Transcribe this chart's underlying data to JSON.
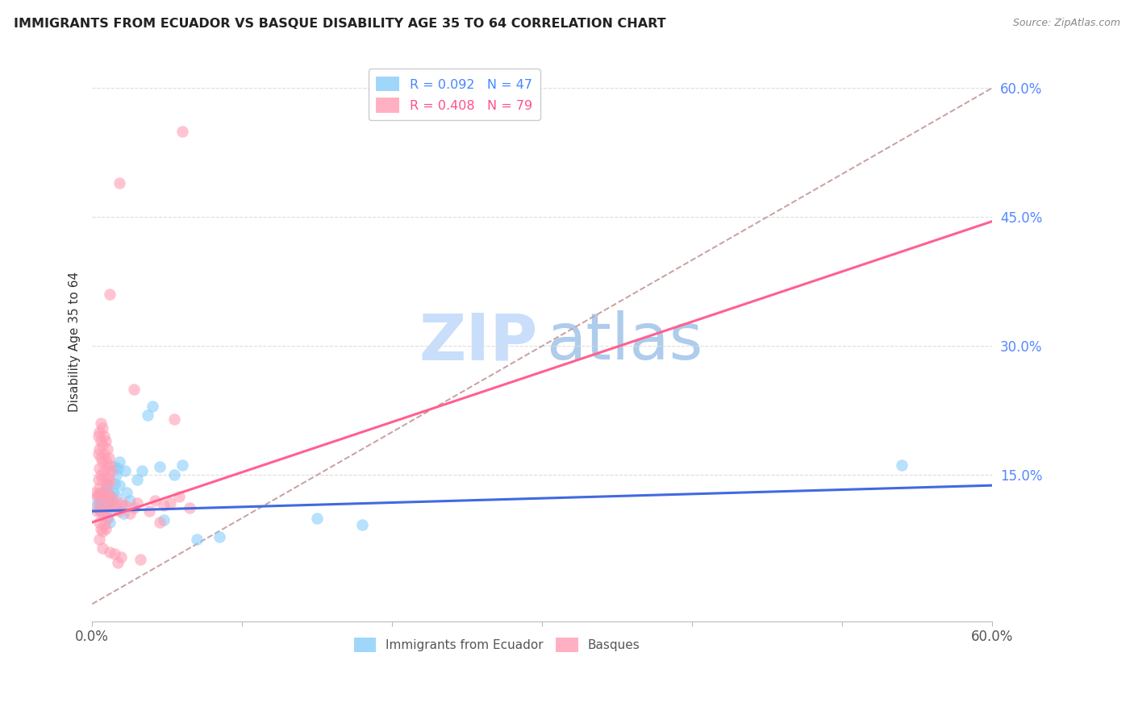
{
  "title": "IMMIGRANTS FROM ECUADOR VS BASQUE DISABILITY AGE 35 TO 64 CORRELATION CHART",
  "source": "Source: ZipAtlas.com",
  "ylabel": "Disability Age 35 to 64",
  "x_min": 0.0,
  "x_max": 0.6,
  "y_min": -0.02,
  "y_max": 0.63,
  "x_ticks": [
    0.0,
    0.1,
    0.2,
    0.3,
    0.4,
    0.5,
    0.6
  ],
  "x_tick_labels": [
    "0.0%",
    "",
    "",
    "",
    "",
    "",
    "60.0%"
  ],
  "y_tick_positions": [
    0.15,
    0.3,
    0.45,
    0.6
  ],
  "y_tick_labels": [
    "15.0%",
    "30.0%",
    "45.0%",
    "60.0%"
  ],
  "ecuador_color": "#87CEFA",
  "basque_color": "#FF9EB5",
  "trendline_ecuador_color": "#4169E1",
  "trendline_basque_color": "#FF6090",
  "diagonal_color": "#C8A0A0",
  "watermark_zip_color": "#C8DEFA",
  "watermark_atlas_color": "#A0C4E8",
  "grid_color": "#DDDDDD",
  "trendline_ecuador": [
    [
      0.0,
      0.108
    ],
    [
      0.6,
      0.138
    ]
  ],
  "trendline_basque": [
    [
      0.0,
      0.095
    ],
    [
      0.6,
      0.445
    ]
  ],
  "diagonal_line": [
    [
      0.0,
      0.0
    ],
    [
      0.6,
      0.6
    ]
  ],
  "ecuador_scatter": [
    [
      0.003,
      0.115
    ],
    [
      0.004,
      0.118
    ],
    [
      0.005,
      0.125
    ],
    [
      0.005,
      0.11
    ],
    [
      0.006,
      0.12
    ],
    [
      0.006,
      0.108
    ],
    [
      0.007,
      0.13
    ],
    [
      0.007,
      0.115
    ],
    [
      0.008,
      0.125
    ],
    [
      0.008,
      0.112
    ],
    [
      0.009,
      0.135
    ],
    [
      0.009,
      0.108
    ],
    [
      0.01,
      0.14
    ],
    [
      0.01,
      0.118
    ],
    [
      0.01,
      0.1
    ],
    [
      0.011,
      0.13
    ],
    [
      0.011,
      0.115
    ],
    [
      0.012,
      0.125
    ],
    [
      0.012,
      0.095
    ],
    [
      0.013,
      0.118
    ],
    [
      0.013,
      0.108
    ],
    [
      0.014,
      0.13
    ],
    [
      0.015,
      0.16
    ],
    [
      0.015,
      0.14
    ],
    [
      0.016,
      0.15
    ],
    [
      0.016,
      0.125
    ],
    [
      0.017,
      0.158
    ],
    [
      0.018,
      0.165
    ],
    [
      0.018,
      0.138
    ],
    [
      0.02,
      0.115
    ],
    [
      0.021,
      0.105
    ],
    [
      0.022,
      0.155
    ],
    [
      0.023,
      0.13
    ],
    [
      0.025,
      0.12
    ],
    [
      0.03,
      0.145
    ],
    [
      0.033,
      0.155
    ],
    [
      0.037,
      0.22
    ],
    [
      0.04,
      0.23
    ],
    [
      0.045,
      0.16
    ],
    [
      0.048,
      0.098
    ],
    [
      0.055,
      0.15
    ],
    [
      0.06,
      0.162
    ],
    [
      0.07,
      0.075
    ],
    [
      0.085,
      0.078
    ],
    [
      0.15,
      0.1
    ],
    [
      0.18,
      0.092
    ],
    [
      0.54,
      0.162
    ]
  ],
  "basque_scatter": [
    [
      0.002,
      0.13
    ],
    [
      0.003,
      0.125
    ],
    [
      0.003,
      0.108
    ],
    [
      0.004,
      0.195
    ],
    [
      0.004,
      0.175
    ],
    [
      0.004,
      0.145
    ],
    [
      0.004,
      0.128
    ],
    [
      0.005,
      0.2
    ],
    [
      0.005,
      0.18
    ],
    [
      0.005,
      0.158
    ],
    [
      0.005,
      0.135
    ],
    [
      0.005,
      0.115
    ],
    [
      0.005,
      0.095
    ],
    [
      0.005,
      0.075
    ],
    [
      0.006,
      0.21
    ],
    [
      0.006,
      0.19
    ],
    [
      0.006,
      0.17
    ],
    [
      0.006,
      0.15
    ],
    [
      0.006,
      0.13
    ],
    [
      0.006,
      0.108
    ],
    [
      0.006,
      0.088
    ],
    [
      0.007,
      0.205
    ],
    [
      0.007,
      0.185
    ],
    [
      0.007,
      0.165
    ],
    [
      0.007,
      0.145
    ],
    [
      0.007,
      0.125
    ],
    [
      0.007,
      0.105
    ],
    [
      0.007,
      0.085
    ],
    [
      0.007,
      0.065
    ],
    [
      0.008,
      0.195
    ],
    [
      0.008,
      0.175
    ],
    [
      0.008,
      0.155
    ],
    [
      0.008,
      0.13
    ],
    [
      0.008,
      0.112
    ],
    [
      0.008,
      0.092
    ],
    [
      0.009,
      0.19
    ],
    [
      0.009,
      0.168
    ],
    [
      0.009,
      0.148
    ],
    [
      0.009,
      0.128
    ],
    [
      0.009,
      0.108
    ],
    [
      0.009,
      0.088
    ],
    [
      0.01,
      0.18
    ],
    [
      0.01,
      0.16
    ],
    [
      0.01,
      0.14
    ],
    [
      0.01,
      0.12
    ],
    [
      0.01,
      0.1
    ],
    [
      0.011,
      0.17
    ],
    [
      0.011,
      0.148
    ],
    [
      0.011,
      0.128
    ],
    [
      0.012,
      0.162
    ],
    [
      0.012,
      0.142
    ],
    [
      0.012,
      0.06
    ],
    [
      0.013,
      0.155
    ],
    [
      0.013,
      0.12
    ],
    [
      0.014,
      0.122
    ],
    [
      0.015,
      0.115
    ],
    [
      0.015,
      0.058
    ],
    [
      0.016,
      0.112
    ],
    [
      0.017,
      0.048
    ],
    [
      0.018,
      0.108
    ],
    [
      0.019,
      0.055
    ],
    [
      0.02,
      0.118
    ],
    [
      0.022,
      0.115
    ],
    [
      0.025,
      0.105
    ],
    [
      0.028,
      0.112
    ],
    [
      0.03,
      0.118
    ],
    [
      0.032,
      0.052
    ],
    [
      0.012,
      0.36
    ],
    [
      0.018,
      0.49
    ],
    [
      0.06,
      0.55
    ],
    [
      0.028,
      0.25
    ],
    [
      0.055,
      0.215
    ],
    [
      0.042,
      0.12
    ],
    [
      0.038,
      0.108
    ],
    [
      0.045,
      0.095
    ],
    [
      0.048,
      0.115
    ],
    [
      0.052,
      0.118
    ],
    [
      0.058,
      0.125
    ],
    [
      0.065,
      0.112
    ]
  ]
}
